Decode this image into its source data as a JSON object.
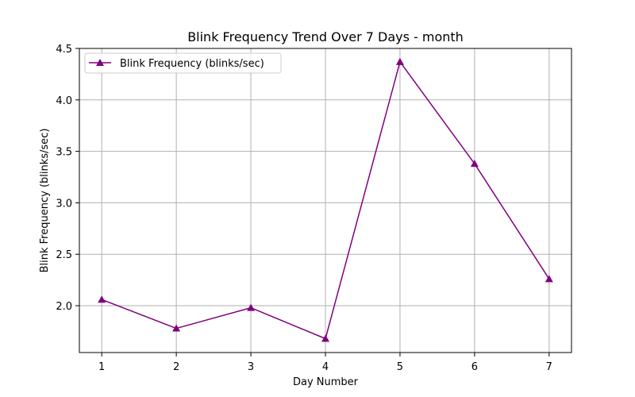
{
  "chart_data": {
    "type": "line",
    "title": "Blink Frequency Trend Over 7 Days - month",
    "xlabel": "Day Number",
    "ylabel": "Blink Frequency (blinks/sec)",
    "x": [
      1,
      2,
      3,
      4,
      5,
      6,
      7
    ],
    "series": [
      {
        "name": "Blink Frequency (blinks/sec)",
        "values": [
          2.06,
          1.78,
          1.98,
          1.68,
          4.37,
          3.38,
          2.26
        ],
        "color": "#800080",
        "marker": "triangle-up"
      }
    ],
    "xticks": [
      "1",
      "2",
      "3",
      "4",
      "5",
      "6",
      "7"
    ],
    "yticks": [
      "2.0",
      "2.5",
      "3.0",
      "3.5",
      "4.0",
      "4.5"
    ],
    "xlim": [
      0.7,
      7.3
    ],
    "ylim": [
      1.545,
      4.5
    ],
    "grid": true,
    "legend_position": "upper-left"
  }
}
